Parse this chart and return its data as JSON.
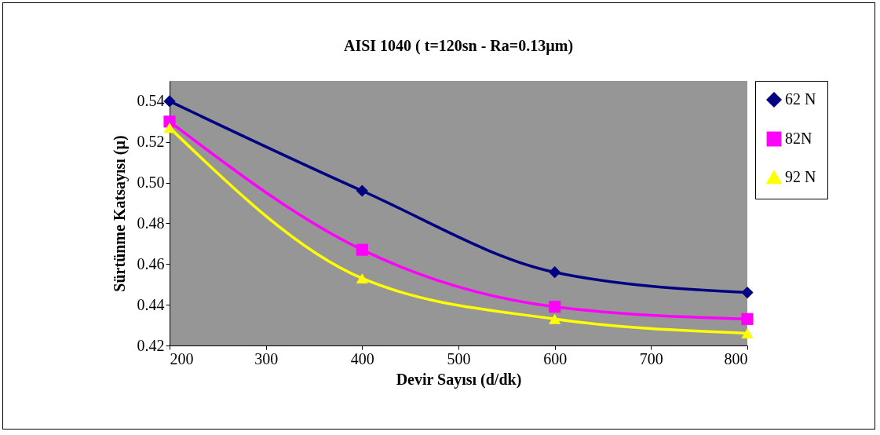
{
  "chart_data": {
    "type": "line",
    "title": "AISI 1040  ( t=120sn  -  Ra=0.13µm)",
    "xlabel": "Devir Sayısı (d/dk)",
    "ylabel": "Sürtünme Katsayısı (µ)",
    "x": [
      200,
      400,
      600,
      800
    ],
    "series": [
      {
        "name": "62 N",
        "color": "#000080",
        "marker": "diamond",
        "values": [
          0.54,
          0.496,
          0.456,
          0.446
        ]
      },
      {
        "name": "82N",
        "color": "#ff00ff",
        "marker": "square",
        "values": [
          0.53,
          0.467,
          0.439,
          0.433
        ]
      },
      {
        "name": "92 N",
        "color": "#ffff00",
        "marker": "triangle",
        "values": [
          0.527,
          0.453,
          0.433,
          0.426
        ]
      }
    ],
    "xlim": [
      200,
      800
    ],
    "xticks": [
      200,
      300,
      400,
      500,
      600,
      700,
      800
    ],
    "ylim": [
      0.42,
      0.55
    ],
    "yticks": [
      0.42,
      0.44,
      0.46,
      0.48,
      {
        "value": 0.5,
        "label": "0.50"
      },
      0.52,
      0.54
    ],
    "grid": false,
    "legend": "right",
    "line_style": "solid"
  }
}
